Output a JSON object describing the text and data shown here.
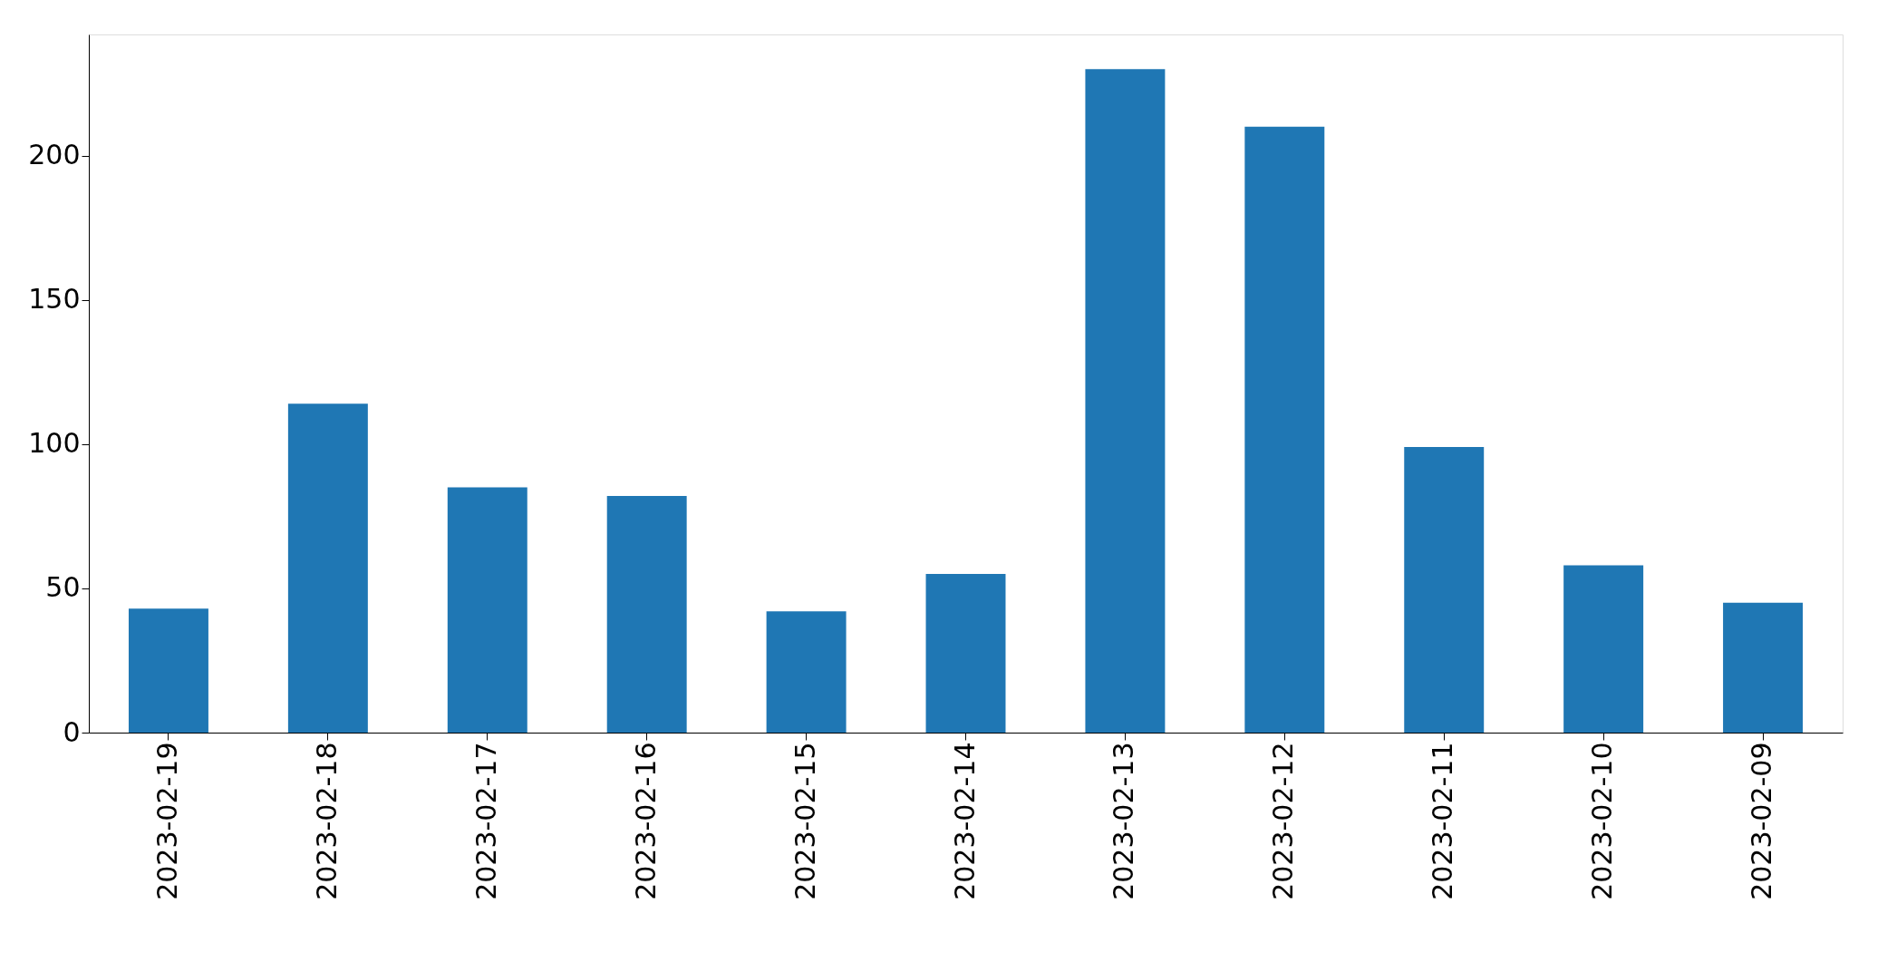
{
  "chart_data": {
    "type": "bar",
    "categories": [
      "2023-02-19",
      "2023-02-18",
      "2023-02-17",
      "2023-02-16",
      "2023-02-15",
      "2023-02-14",
      "2023-02-13",
      "2023-02-12",
      "2023-02-11",
      "2023-02-10",
      "2023-02-09"
    ],
    "values": [
      43,
      114,
      85,
      82,
      42,
      55,
      230,
      210,
      99,
      58,
      45
    ],
    "color": "#1f77b4",
    "ylim": [
      0,
      242
    ],
    "yticks": [
      0,
      50,
      100,
      150,
      200
    ],
    "grid": false
  }
}
